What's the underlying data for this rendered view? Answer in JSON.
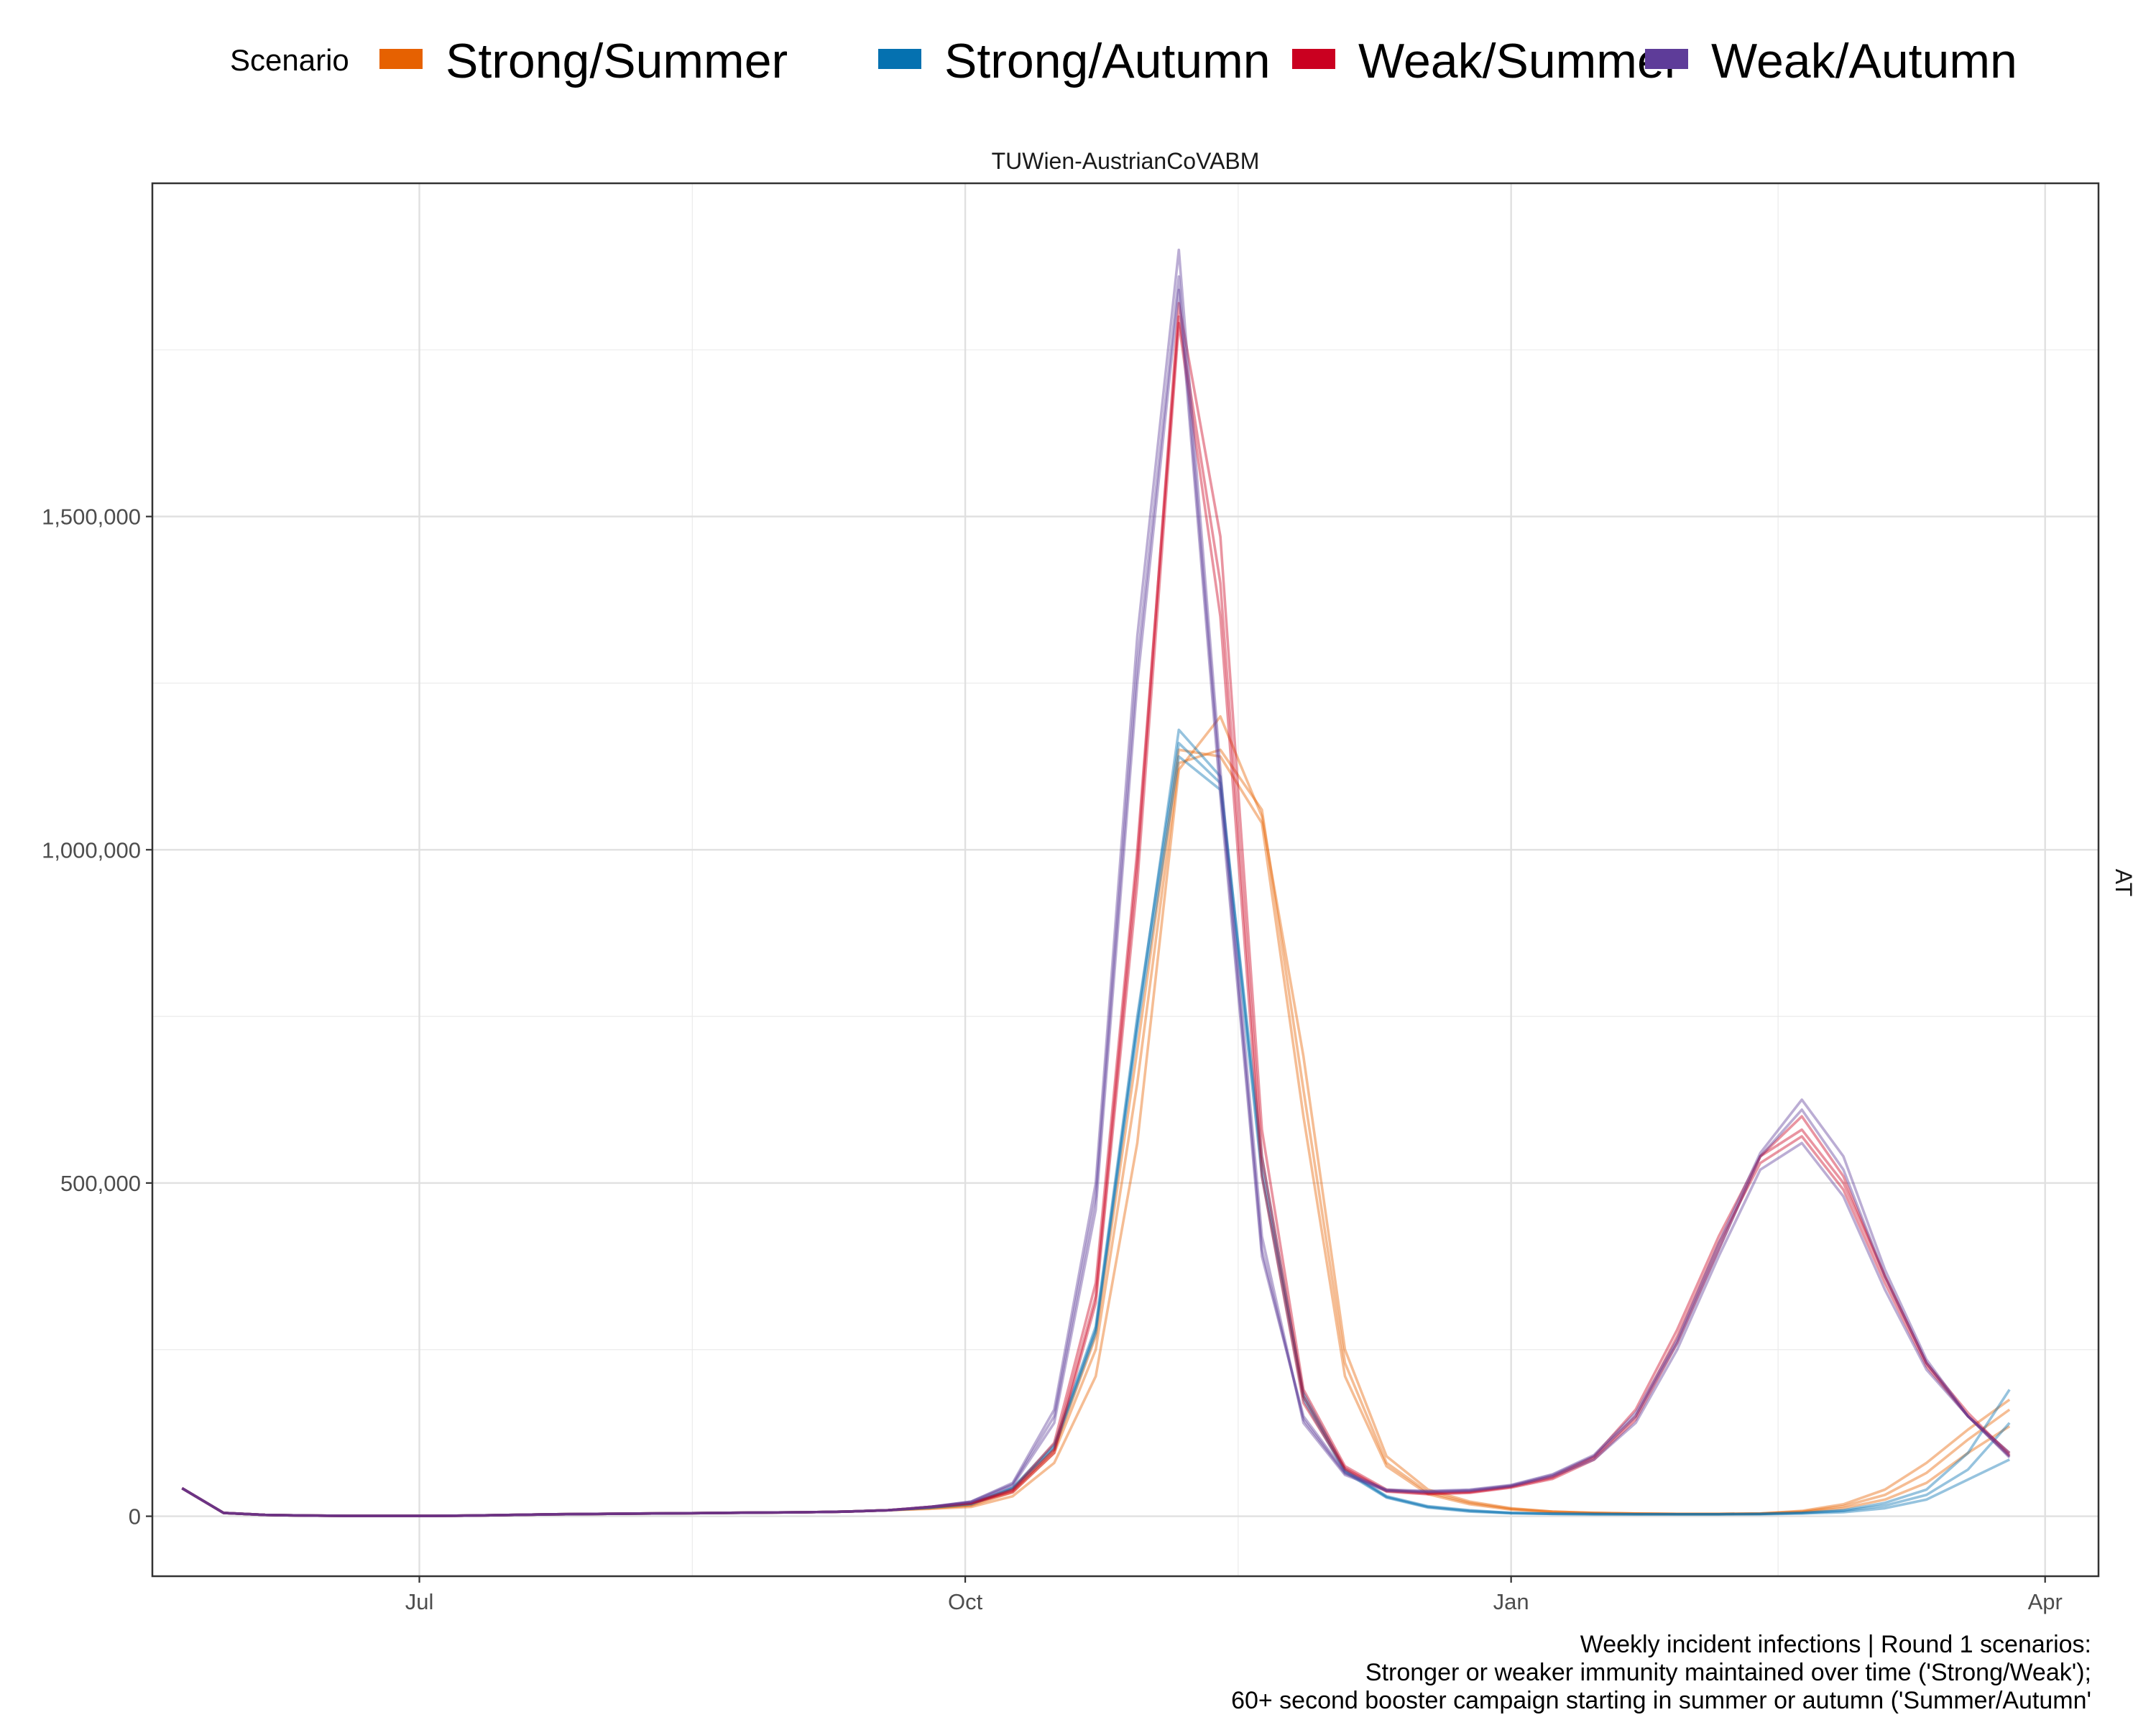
{
  "legend": {
    "title": "Scenario",
    "items": [
      {
        "label": "Strong/Summer",
        "color": "#E66101"
      },
      {
        "label": "Strong/Autumn",
        "color": "#0571B0"
      },
      {
        "label": "Weak/Summer",
        "color": "#CA0020"
      },
      {
        "label": "Weak/Autumn",
        "color": "#5E3C99"
      }
    ]
  },
  "facet": {
    "top": "TUWien-AustrianCoVABM",
    "right": "AT"
  },
  "caption": [
    "Weekly incident infections | Round 1 scenarios:",
    "Stronger or weaker immunity maintained over time ('Strong/Weak');",
    "60+ second booster campaign starting in summer or autumn ('Summer/Autumn'"
  ],
  "chart_data": {
    "type": "line",
    "title": "",
    "xlabel": "",
    "ylabel": "",
    "x_type": "date",
    "xlim": [
      "2022-05-17",
      "2023-04-10"
    ],
    "ylim": [
      -90000,
      2000000
    ],
    "x_ticks": [
      {
        "date": "2022-07-01",
        "label": "Jul"
      },
      {
        "date": "2022-10-01",
        "label": "Oct"
      },
      {
        "date": "2023-01-01",
        "label": "Jan"
      },
      {
        "date": "2023-04-01",
        "label": "Apr"
      }
    ],
    "y_ticks": [
      {
        "value": 0,
        "label": "0"
      },
      {
        "value": 500000,
        "label": "500,000"
      },
      {
        "value": 1000000,
        "label": "1,000,000"
      },
      {
        "value": 1500000,
        "label": "1,500,000"
      }
    ],
    "grid": true,
    "legend_position": "top",
    "dates": [
      "2022-05-22",
      "2022-05-29",
      "2022-06-05",
      "2022-06-12",
      "2022-06-19",
      "2022-06-26",
      "2022-07-03",
      "2022-07-10",
      "2022-07-17",
      "2022-07-24",
      "2022-07-31",
      "2022-08-07",
      "2022-08-14",
      "2022-08-21",
      "2022-08-28",
      "2022-09-04",
      "2022-09-11",
      "2022-09-18",
      "2022-09-25",
      "2022-10-02",
      "2022-10-09",
      "2022-10-16",
      "2022-10-23",
      "2022-10-30",
      "2022-11-06",
      "2022-11-13",
      "2022-11-20",
      "2022-11-27",
      "2022-12-04",
      "2022-12-11",
      "2022-12-18",
      "2022-12-25",
      "2023-01-01",
      "2023-01-08",
      "2023-01-15",
      "2023-01-22",
      "2023-01-29",
      "2023-02-05",
      "2023-02-12",
      "2023-02-19",
      "2023-02-26",
      "2023-03-05",
      "2023-03-12",
      "2023-03-19",
      "2023-03-26"
    ],
    "series": [
      {
        "name": "Strong/Summer",
        "runs": [
          [
            42000,
            5000,
            2000,
            1000,
            500,
            500,
            500,
            1000,
            2000,
            3000,
            3500,
            4000,
            4500,
            5000,
            5500,
            6000,
            7000,
            9000,
            11000,
            14000,
            30000,
            80000,
            210000,
            560000,
            1120000,
            1200000,
            1050000,
            690000,
            250000,
            90000,
            40000,
            22000,
            12000,
            7000,
            5000,
            4000,
            3500,
            3500,
            4000,
            6000,
            12000,
            25000,
            50000,
            95000,
            135000
          ],
          [
            42000,
            5000,
            2000,
            1000,
            500,
            500,
            500,
            1000,
            2000,
            3000,
            3500,
            4000,
            4500,
            5000,
            5500,
            6000,
            7000,
            9000,
            12000,
            16000,
            36000,
            95000,
            250000,
            650000,
            1130000,
            1150000,
            1060000,
            640000,
            230000,
            80000,
            36000,
            20000,
            11000,
            7000,
            5000,
            4000,
            3500,
            3500,
            4000,
            7000,
            15000,
            32000,
            65000,
            115000,
            160000
          ],
          [
            42000,
            5000,
            2000,
            1000,
            500,
            500,
            500,
            1000,
            2000,
            3000,
            3500,
            4000,
            4500,
            5000,
            5500,
            6000,
            7000,
            9000,
            12000,
            17000,
            40000,
            100000,
            270000,
            700000,
            1150000,
            1140000,
            1040000,
            600000,
            210000,
            75000,
            33000,
            18000,
            10000,
            6000,
            5000,
            4000,
            3500,
            3500,
            4000,
            8000,
            18000,
            40000,
            80000,
            130000,
            175000
          ]
        ]
      },
      {
        "name": "Strong/Autumn",
        "runs": [
          [
            42000,
            5000,
            2000,
            1000,
            500,
            500,
            500,
            1000,
            2000,
            3000,
            3500,
            4000,
            4500,
            5000,
            5500,
            6000,
            7000,
            9000,
            13000,
            19000,
            42000,
            105000,
            280000,
            740000,
            1180000,
            1110000,
            520000,
            185000,
            70000,
            30000,
            15000,
            9000,
            5000,
            4000,
            3500,
            3000,
            3000,
            3000,
            3500,
            5000,
            9000,
            20000,
            40000,
            95000,
            190000
          ],
          [
            42000,
            5000,
            2000,
            1000,
            500,
            500,
            500,
            1000,
            2000,
            3000,
            3500,
            4000,
            4500,
            5000,
            5500,
            6000,
            7000,
            9000,
            13000,
            19000,
            43000,
            108000,
            285000,
            750000,
            1160000,
            1100000,
            540000,
            180000,
            68000,
            29000,
            14000,
            8000,
            5000,
            3500,
            3000,
            3000,
            3000,
            3000,
            3500,
            5000,
            8000,
            16000,
            32000,
            70000,
            140000
          ],
          [
            42000,
            5000,
            2000,
            1000,
            500,
            500,
            500,
            1000,
            2000,
            3000,
            3500,
            4000,
            4500,
            5000,
            5500,
            6000,
            7000,
            9000,
            13000,
            18000,
            41000,
            102000,
            275000,
            730000,
            1140000,
            1090000,
            510000,
            175000,
            66000,
            28000,
            13000,
            7000,
            4500,
            3500,
            3000,
            3000,
            3000,
            3000,
            3000,
            4000,
            6000,
            12000,
            25000,
            55000,
            85000
          ]
        ]
      },
      {
        "name": "Weak/Summer",
        "runs": [
          [
            42000,
            5000,
            2000,
            1000,
            500,
            500,
            500,
            1000,
            2000,
            3000,
            3500,
            4000,
            4500,
            5000,
            5500,
            6000,
            7000,
            9000,
            14000,
            20000,
            38000,
            100000,
            330000,
            980000,
            1820000,
            1470000,
            580000,
            190000,
            75000,
            40000,
            35000,
            37000,
            45000,
            60000,
            90000,
            160000,
            280000,
            420000,
            540000,
            580000,
            500000,
            360000,
            230000,
            150000,
            90000
          ],
          [
            42000,
            5000,
            2000,
            1000,
            500,
            500,
            500,
            1000,
            2000,
            3000,
            3500,
            4000,
            4500,
            5000,
            5500,
            6000,
            7000,
            9000,
            14000,
            20000,
            40000,
            110000,
            350000,
            1000000,
            1800000,
            1400000,
            540000,
            180000,
            72000,
            38000,
            34000,
            36000,
            44000,
            58000,
            88000,
            150000,
            270000,
            410000,
            530000,
            570000,
            490000,
            350000,
            225000,
            150000,
            95000
          ],
          [
            42000,
            5000,
            2000,
            1000,
            500,
            500,
            500,
            1000,
            2000,
            3000,
            3500,
            4000,
            4500,
            5000,
            5500,
            6000,
            7000,
            9000,
            14000,
            19000,
            36000,
            95000,
            320000,
            950000,
            1790000,
            1350000,
            510000,
            170000,
            70000,
            37000,
            33000,
            35000,
            43000,
            56000,
            85000,
            145000,
            260000,
            400000,
            540000,
            600000,
            510000,
            360000,
            230000,
            155000,
            92000
          ]
        ]
      },
      {
        "name": "Weak/Autumn",
        "runs": [
          [
            42000,
            5000,
            2000,
            1000,
            500,
            500,
            500,
            1000,
            2000,
            3000,
            3500,
            4000,
            4500,
            5000,
            5500,
            6000,
            7000,
            9000,
            14000,
            22000,
            50000,
            160000,
            500000,
            1320000,
            1900000,
            1120000,
            420000,
            140000,
            62000,
            38000,
            36000,
            38000,
            45000,
            60000,
            85000,
            140000,
            250000,
            390000,
            520000,
            560000,
            480000,
            340000,
            220000,
            150000,
            95000
          ],
          [
            42000,
            5000,
            2000,
            1000,
            500,
            500,
            500,
            1000,
            2000,
            3000,
            3500,
            4000,
            4500,
            5000,
            5500,
            6000,
            7000,
            9000,
            14000,
            22000,
            48000,
            150000,
            480000,
            1280000,
            1860000,
            1100000,
            400000,
            145000,
            64000,
            39000,
            37000,
            39000,
            46000,
            62000,
            90000,
            150000,
            260000,
            400000,
            540000,
            610000,
            520000,
            360000,
            230000,
            150000,
            90000
          ],
          [
            42000,
            5000,
            2000,
            1000,
            500,
            500,
            500,
            1000,
            2000,
            3000,
            3500,
            4000,
            4500,
            5000,
            5500,
            6000,
            7000,
            9000,
            14000,
            21000,
            46000,
            140000,
            460000,
            1250000,
            1840000,
            1080000,
            390000,
            150000,
            66000,
            40000,
            38000,
            40000,
            47000,
            63000,
            92000,
            155000,
            265000,
            410000,
            545000,
            625000,
            540000,
            370000,
            235000,
            150000,
            88000
          ]
        ]
      }
    ]
  }
}
